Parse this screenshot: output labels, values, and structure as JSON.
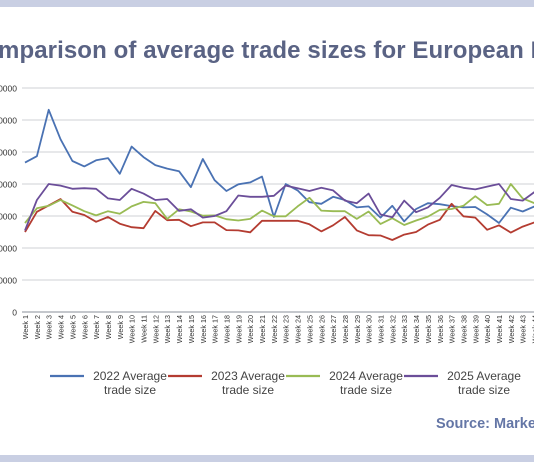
{
  "chart_data": {
    "type": "line",
    "title": "mparison of average trade sizes for European I",
    "source": "Source: Market",
    "y_tick_labels": [
      "0",
      "0000",
      "0000",
      "0000",
      "0000",
      "0000",
      "0000",
      "0000"
    ],
    "y_tick_values": [
      0,
      20000,
      40000,
      60000,
      80000,
      100000,
      120000,
      140000
    ],
    "ylim": [
      0,
      140000
    ],
    "categories": [
      "Week 1",
      "Week 2",
      "Week 3",
      "Week 4",
      "Week 5",
      "Week 6",
      "Week 7",
      "Week 8",
      "Week 9",
      "Week 10",
      "Week 11",
      "Week 12",
      "Week 13",
      "Week 14",
      "Week 15",
      "Week 16",
      "Week 17",
      "Week 18",
      "Week 19",
      "Week 20",
      "Week 21",
      "Week 22",
      "Week 23",
      "Week 24",
      "Week 25",
      "Week 26",
      "Week 27",
      "Week 28",
      "Week 29",
      "Week 30",
      "Week 31",
      "Week 32",
      "Week 33",
      "Week 34",
      "Week 35",
      "Week 36",
      "Week 37",
      "Week 38",
      "Week 39",
      "Week 40",
      "Week 41",
      "Week 42",
      "Week 43",
      "Week 44"
    ],
    "grid": true,
    "legend_position": "bottom",
    "series": [
      {
        "name_line1": "2022 Average",
        "name_line2": "trade size",
        "color": "#4a72b3",
        "values": [
          93400,
          97400,
          126400,
          108000,
          94400,
          91000,
          94800,
          96200,
          86400,
          103400,
          96800,
          91800,
          89600,
          88000,
          78000,
          95600,
          82400,
          75600,
          79800,
          81000,
          84600,
          59400,
          80000,
          76000,
          68600,
          67600,
          72000,
          70000,
          65400,
          66000,
          59000,
          66400,
          56600,
          64400,
          68000,
          67400,
          66200,
          65400,
          65600,
          61000,
          55600,
          65200,
          62800,
          66000
        ]
      },
      {
        "name_line1": "2023 Average",
        "name_line2": "trade size",
        "color": "#b43c31",
        "values": [
          50000,
          62600,
          66600,
          70600,
          62600,
          60600,
          56400,
          59400,
          55200,
          53000,
          52400,
          63200,
          57400,
          57600,
          53600,
          56000,
          56000,
          51200,
          51000,
          49800,
          57000,
          57000,
          57000,
          57000,
          54800,
          50400,
          54200,
          59400,
          51000,
          48000,
          47800,
          45000,
          48400,
          50000,
          54600,
          57600,
          67600,
          59800,
          59000,
          51400,
          54200,
          49600,
          53400,
          56000
        ]
      },
      {
        "name_line1": "2024 Average",
        "name_line2": "trade size",
        "color": "#99bb54",
        "values": [
          55600,
          64800,
          66400,
          70000,
          66600,
          63000,
          60400,
          63000,
          61400,
          66000,
          68800,
          68000,
          58200,
          64200,
          62800,
          60200,
          60400,
          58000,
          57200,
          58200,
          63400,
          59800,
          59800,
          66000,
          71400,
          63400,
          63000,
          63000,
          58200,
          62800,
          55000,
          58600,
          54400,
          57200,
          59600,
          63800,
          64400,
          66400,
          72400,
          66800,
          67600,
          80000,
          71000,
          68000
        ]
      },
      {
        "name_line1": "2025 Average",
        "name_line2": "trade size",
        "color": "#6b4e99",
        "values": [
          51000,
          70000,
          80000,
          79000,
          77000,
          77400,
          77000,
          71000,
          70000,
          77000,
          74000,
          70000,
          70600,
          63200,
          64200,
          59000,
          60000,
          63000,
          72800,
          72000,
          72000,
          72600,
          79000,
          77400,
          75600,
          77600,
          76000,
          69600,
          68000,
          74000,
          61000,
          59200,
          69600,
          62400,
          65400,
          71400,
          79400,
          77600,
          76600,
          78400,
          80000,
          70600,
          69600,
          75000
        ]
      }
    ]
  }
}
